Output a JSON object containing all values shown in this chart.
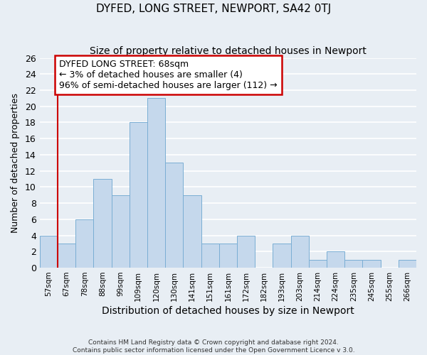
{
  "title": "DYFED, LONG STREET, NEWPORT, SA42 0TJ",
  "subtitle": "Size of property relative to detached houses in Newport",
  "xlabel": "Distribution of detached houses by size in Newport",
  "ylabel": "Number of detached properties",
  "bar_labels": [
    "57sqm",
    "67sqm",
    "78sqm",
    "88sqm",
    "99sqm",
    "109sqm",
    "120sqm",
    "130sqm",
    "141sqm",
    "151sqm",
    "161sqm",
    "172sqm",
    "182sqm",
    "193sqm",
    "203sqm",
    "214sqm",
    "224sqm",
    "235sqm",
    "245sqm",
    "255sqm",
    "266sqm"
  ],
  "bar_values": [
    4,
    3,
    6,
    11,
    9,
    18,
    21,
    13,
    9,
    3,
    3,
    4,
    0,
    3,
    4,
    1,
    2,
    1,
    1,
    0,
    1
  ],
  "bar_color": "#c5d8ec",
  "bar_edge_color": "#7aaed4",
  "ylim": [
    0,
    26
  ],
  "yticks": [
    0,
    2,
    4,
    6,
    8,
    10,
    12,
    14,
    16,
    18,
    20,
    22,
    24,
    26
  ],
  "vline_x": 0.5,
  "vline_color": "#cc0000",
  "annotation_text": "DYFED LONG STREET: 68sqm\n← 3% of detached houses are smaller (4)\n96% of semi-detached houses are larger (112) →",
  "annotation_box_color": "#ffffff",
  "annotation_box_edge_color": "#cc0000",
  "footer_line1": "Contains HM Land Registry data © Crown copyright and database right 2024.",
  "footer_line2": "Contains public sector information licensed under the Open Government Licence v 3.0.",
  "background_color": "#e8eef4",
  "grid_color": "#ffffff",
  "title_fontsize": 11,
  "subtitle_fontsize": 10,
  "xlabel_fontsize": 10,
  "ylabel_fontsize": 9,
  "annot_fontsize": 9
}
